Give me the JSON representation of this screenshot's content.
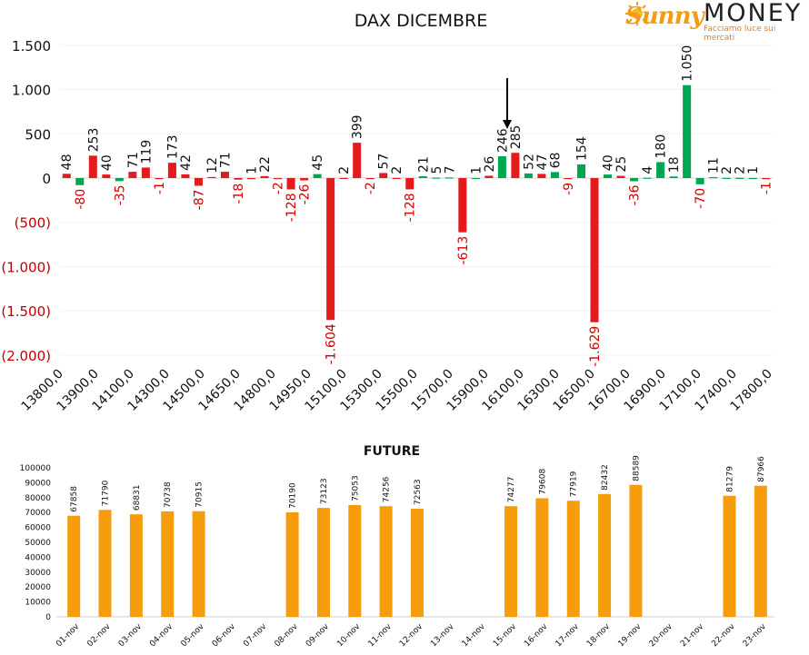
{
  "brand": {
    "name_part1": "Sunny",
    "name_part2": "MONEY",
    "tagline": "Facciamo luce sui mercati"
  },
  "colors": {
    "positive": "#00a651",
    "negative": "#e41a1c",
    "future": "#f59d0a",
    "arrow": "#000000"
  },
  "chart_data": [
    {
      "type": "bar",
      "title": "DAX DICEMBRE",
      "ylim": [
        -2000,
        1500
      ],
      "y_ticks": [
        1500,
        1000,
        500,
        0,
        -500,
        -1000,
        -1500,
        -2000
      ],
      "y_tick_labels": [
        "1.500",
        "1.000",
        "500",
        "0",
        "(500)",
        "(1.000)",
        "(1.500)",
        "(2.000)"
      ],
      "x_tick_labels": [
        "13800,0",
        "13900,0",
        "14100,0",
        "14300,0",
        "14500,0",
        "14650,0",
        "14800,0",
        "14950,0",
        "15100,0",
        "15300,0",
        "15500,0",
        "15700,0",
        "15900,0",
        "16100,0",
        "16300,0",
        "16500,0",
        "16700,0",
        "16900,0",
        "17100,0",
        "17400,0",
        "17800,0"
      ],
      "grid": true,
      "arrow_at_strike_index": 23,
      "bars": [
        {
          "color": "red",
          "v": 48,
          "l": "48"
        },
        {
          "color": "green",
          "v": -80,
          "l": "-80"
        },
        {
          "color": "red",
          "v": 253,
          "l": "253"
        },
        {
          "color": "red",
          "v": 40,
          "l": "40"
        },
        {
          "color": "green",
          "v": -35,
          "l": "-35"
        },
        {
          "color": "red",
          "v": 71,
          "l": "71"
        },
        {
          "color": "red",
          "v": 119,
          "l": "119"
        },
        {
          "color": "red",
          "v": -1,
          "l": "-1"
        },
        {
          "color": "red",
          "v": 173,
          "l": "173"
        },
        {
          "color": "red",
          "v": 42,
          "l": "42"
        },
        {
          "color": "red",
          "v": -87,
          "l": "-87"
        },
        {
          "color": "red",
          "v": 12,
          "l": "12"
        },
        {
          "color": "red",
          "v": 71,
          "l": "71"
        },
        {
          "color": "red",
          "v": -18,
          "l": "-18"
        },
        {
          "color": "red",
          "v": 1,
          "l": "1"
        },
        {
          "color": "red",
          "v": 22,
          "l": "22"
        },
        {
          "color": "red",
          "v": -2,
          "l": "-2"
        },
        {
          "color": "red",
          "v": -128,
          "l": "-128"
        },
        {
          "color": "red",
          "v": -26,
          "l": "-26"
        },
        {
          "color": "green",
          "v": 45,
          "l": "45"
        },
        {
          "color": "red",
          "v": -1604,
          "l": "-1.604"
        },
        {
          "color": "red",
          "v": 2,
          "l": "2"
        },
        {
          "color": "red",
          "v": 399,
          "l": "399"
        },
        {
          "color": "red",
          "v": -2,
          "l": "-2"
        },
        {
          "color": "red",
          "v": 57,
          "l": "57"
        },
        {
          "color": "red",
          "v": 2,
          "l": "2"
        },
        {
          "color": "red",
          "v": -128,
          "l": "-128"
        },
        {
          "color": "green",
          "v": 21,
          "l": "21"
        },
        {
          "color": "green",
          "v": 5,
          "l": "5"
        },
        {
          "color": "green",
          "v": 7,
          "l": "7"
        },
        {
          "color": "red",
          "v": -613,
          "l": "-613"
        },
        {
          "color": "green",
          "v": 1,
          "l": "1"
        },
        {
          "color": "red",
          "v": 26,
          "l": "26"
        },
        {
          "color": "green",
          "v": 246,
          "l": "246"
        },
        {
          "color": "red",
          "v": 285,
          "l": "285"
        },
        {
          "color": "green",
          "v": 52,
          "l": "52"
        },
        {
          "color": "red",
          "v": 47,
          "l": "47"
        },
        {
          "color": "green",
          "v": 68,
          "l": "68"
        },
        {
          "color": "red",
          "v": -9,
          "l": "-9"
        },
        {
          "color": "green",
          "v": 154,
          "l": "154"
        },
        {
          "color": "red",
          "v": -1629,
          "l": "-1.629"
        },
        {
          "color": "green",
          "v": 40,
          "l": "40"
        },
        {
          "color": "red",
          "v": 25,
          "l": "25"
        },
        {
          "color": "green",
          "v": -36,
          "l": "-36"
        },
        {
          "color": "green",
          "v": 4,
          "l": "4"
        },
        {
          "color": "green",
          "v": 180,
          "l": "180"
        },
        {
          "color": "green",
          "v": 18,
          "l": "18"
        },
        {
          "color": "green",
          "v": 1050,
          "l": "1.050"
        },
        {
          "color": "green",
          "v": -70,
          "l": "-70"
        },
        {
          "color": "green",
          "v": 11,
          "l": "11"
        },
        {
          "color": "green",
          "v": 2,
          "l": "2"
        },
        {
          "color": "green",
          "v": 2,
          "l": "2"
        },
        {
          "color": "green",
          "v": 1,
          "l": "1"
        },
        {
          "color": "red",
          "v": -1,
          "l": "-1"
        }
      ]
    },
    {
      "type": "bar",
      "title": "FUTURE",
      "ylim": [
        0,
        100000
      ],
      "y_ticks": [
        0,
        10000,
        20000,
        30000,
        40000,
        50000,
        60000,
        70000,
        80000,
        90000,
        100000
      ],
      "categories": [
        "01-nov",
        "02-nov",
        "03-nov",
        "04-nov",
        "05-nov",
        "06-nov",
        "07-nov",
        "08-nov",
        "09-nov",
        "10-nov",
        "11-nov",
        "12-nov",
        "13-nov",
        "14-nov",
        "15-nov",
        "16-nov",
        "17-nov",
        "18-nov",
        "19-nov",
        "20-nov",
        "21-nov",
        "22-nov",
        "23-nov"
      ],
      "values": [
        67858,
        71790,
        68831,
        70738,
        70915,
        null,
        null,
        70190,
        73123,
        75053,
        74256,
        72563,
        null,
        null,
        74277,
        79608,
        77919,
        82432,
        88589,
        null,
        null,
        81279,
        87966
      ]
    }
  ]
}
